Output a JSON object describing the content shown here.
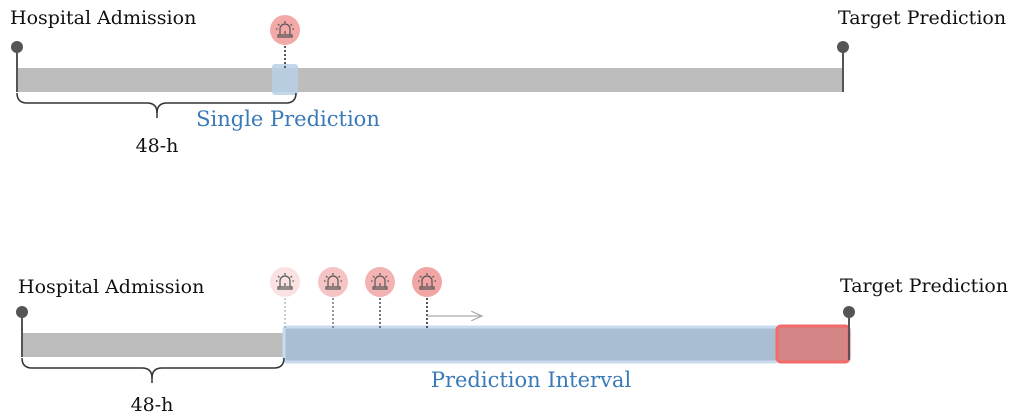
{
  "panels": [
    {
      "start_label": "Hospital Admission",
      "end_label": "Target Prediction",
      "prediction_label": "Single Prediction",
      "window_label": "48-h"
    },
    {
      "start_label": "Hospital Admission",
      "end_label": "Target Prediction",
      "prediction_label": "Prediction Interval",
      "window_label": "48-h"
    }
  ]
}
